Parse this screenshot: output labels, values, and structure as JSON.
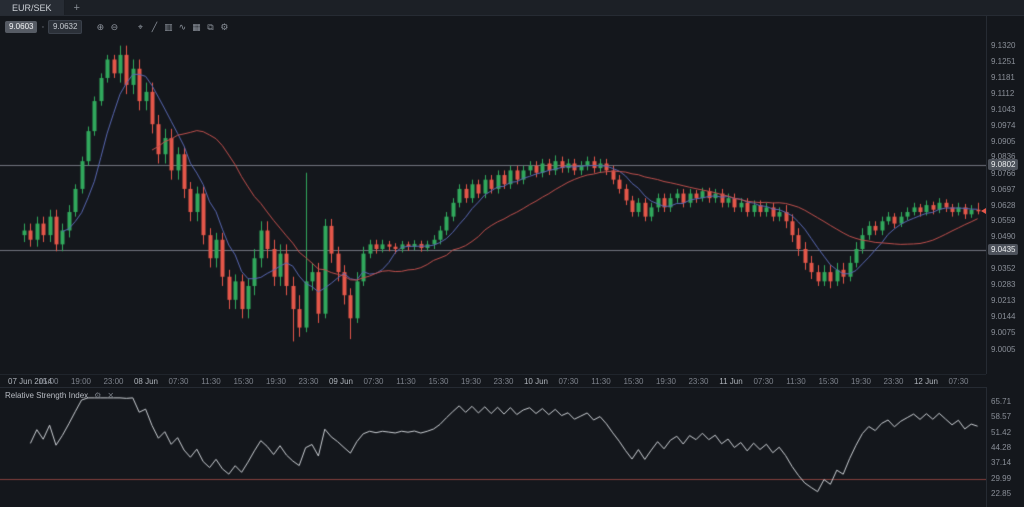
{
  "tab_bar": {
    "tabs": [
      {
        "label": "EUR/SEK",
        "active": true
      }
    ],
    "new_tab": "+"
  },
  "toolbar": {
    "sell_price": "9.0603",
    "buy_price": "9.0632",
    "divider_glyph": "▫",
    "icons": [
      {
        "name": "zoom-in-icon",
        "glyph": "⊕"
      },
      {
        "name": "zoom-out-icon",
        "glyph": "⊖"
      },
      {
        "name": "crosshair-icon",
        "glyph": "⌖"
      },
      {
        "name": "trendline-icon",
        "glyph": "╱"
      },
      {
        "name": "candlestick-type-icon",
        "glyph": "▥"
      },
      {
        "name": "indicators-icon",
        "glyph": "∿"
      },
      {
        "name": "grid-icon",
        "glyph": "▦"
      },
      {
        "name": "snapshot-icon",
        "glyph": "⧉"
      },
      {
        "name": "settings-icon",
        "glyph": "⚙"
      }
    ]
  },
  "price_axis": {
    "labels": [
      "9.1320",
      "9.1251",
      "9.1181",
      "9.1112",
      "9.1043",
      "9.0974",
      "9.0905",
      "9.0836",
      "9.0766",
      "9.0697",
      "9.0628",
      "9.0559",
      "9.0490",
      "9.0421",
      "9.0352",
      "9.0283",
      "9.0213",
      "9.0144",
      "9.0075",
      "9.0005"
    ],
    "level_labels": [
      "9.0802",
      "9.0435"
    ]
  },
  "rsi": {
    "title": "Relative Strength Index",
    "settings_glyph": "⚙",
    "close_glyph": "✕",
    "axis_labels": [
      "65.71",
      "58.57",
      "51.42",
      "44.28",
      "37.14",
      "29.99",
      "22.85"
    ],
    "level_value": 30
  },
  "colors": {
    "up": "#31a85c",
    "down": "#e4574a",
    "level_line": "#70757e",
    "rsi_line": "#ccd0d5",
    "rsi_level_line": "#84403c",
    "background": "#14171c",
    "axis_text": "#8a8f98"
  },
  "chart_data": {
    "type": "candlestick",
    "symbol": "EUR/SEK",
    "y_range": [
      8.999,
      9.134
    ],
    "last_price": 9.0603,
    "levels": [
      9.0802,
      9.0435
    ],
    "overlays": [
      {
        "name": "ma-fast",
        "type": "sma",
        "period": 7,
        "color": "#5968b3"
      },
      {
        "name": "ma-slow",
        "type": "sma",
        "period": 21,
        "color": "#c0504d"
      }
    ],
    "x_labels": [
      "07 Jun 2014",
      "15:00",
      "19:00",
      "23:00",
      "08 Jun",
      "07:30",
      "11:30",
      "15:30",
      "19:30",
      "23:30",
      "09 Jun",
      "07:30",
      "11:30",
      "15:30",
      "19:30",
      "23:30",
      "10 Jun",
      "07:30",
      "11:30",
      "15:30",
      "19:30",
      "23:30",
      "11 Jun",
      "07:30",
      "11:30",
      "15:30",
      "19:30",
      "23:30",
      "12 Jun",
      "07:30"
    ],
    "ohlc": [
      [
        9.05,
        9.055,
        9.047,
        9.052
      ],
      [
        9.052,
        9.055,
        9.045,
        9.048
      ],
      [
        9.048,
        9.058,
        9.045,
        9.055
      ],
      [
        9.055,
        9.058,
        9.047,
        9.05
      ],
      [
        9.05,
        9.061,
        9.047,
        9.058
      ],
      [
        9.058,
        9.061,
        9.043,
        9.046
      ],
      [
        9.046,
        9.055,
        9.043,
        9.052
      ],
      [
        9.052,
        9.063,
        9.049,
        9.06
      ],
      [
        9.06,
        9.072,
        9.058,
        9.07
      ],
      [
        9.07,
        9.084,
        9.068,
        9.082
      ],
      [
        9.082,
        9.097,
        9.08,
        9.095
      ],
      [
        9.095,
        9.11,
        9.093,
        9.108
      ],
      [
        9.108,
        9.12,
        9.106,
        9.118
      ],
      [
        9.118,
        9.128,
        9.116,
        9.126
      ],
      [
        9.126,
        9.128,
        9.118,
        9.12
      ],
      [
        9.12,
        9.132,
        9.116,
        9.128
      ],
      [
        9.128,
        9.132,
        9.111,
        9.115
      ],
      [
        9.115,
        9.126,
        9.111,
        9.122
      ],
      [
        9.122,
        9.126,
        9.104,
        9.108
      ],
      [
        9.108,
        9.116,
        9.104,
        9.112
      ],
      [
        9.112,
        9.116,
        9.094,
        9.098
      ],
      [
        9.098,
        9.102,
        9.081,
        9.085
      ],
      [
        9.085,
        9.096,
        9.081,
        9.092
      ],
      [
        9.092,
        9.096,
        9.074,
        9.078
      ],
      [
        9.078,
        9.088,
        9.074,
        9.085
      ],
      [
        9.085,
        9.088,
        9.066,
        9.07
      ],
      [
        9.07,
        9.073,
        9.056,
        9.06
      ],
      [
        9.06,
        9.071,
        9.056,
        9.068
      ],
      [
        9.068,
        9.071,
        9.046,
        9.05
      ],
      [
        9.05,
        9.053,
        9.036,
        9.04
      ],
      [
        9.04,
        9.051,
        9.036,
        9.048
      ],
      [
        9.048,
        9.051,
        9.028,
        9.032
      ],
      [
        9.032,
        9.035,
        9.018,
        9.022
      ],
      [
        9.022,
        9.033,
        9.018,
        9.03
      ],
      [
        9.03,
        9.033,
        9.014,
        9.018
      ],
      [
        9.018,
        9.031,
        9.014,
        9.028
      ],
      [
        9.028,
        9.044,
        9.024,
        9.04
      ],
      [
        9.04,
        9.056,
        9.036,
        9.052
      ],
      [
        9.052,
        9.056,
        9.04,
        9.044
      ],
      [
        9.044,
        9.048,
        9.028,
        9.032
      ],
      [
        9.032,
        9.046,
        9.028,
        9.042
      ],
      [
        9.042,
        9.046,
        9.024,
        9.028
      ],
      [
        9.028,
        9.032,
        9.004,
        9.018
      ],
      [
        9.018,
        9.024,
        9.006,
        9.01
      ],
      [
        9.01,
        9.077,
        9.008,
        9.03
      ],
      [
        9.03,
        9.038,
        9.026,
        9.034
      ],
      [
        9.034,
        9.038,
        9.012,
        9.016
      ],
      [
        9.016,
        9.057,
        9.014,
        9.054
      ],
      [
        9.054,
        9.057,
        9.038,
        9.042
      ],
      [
        9.042,
        9.045,
        9.03,
        9.034
      ],
      [
        9.034,
        9.037,
        9.02,
        9.024
      ],
      [
        9.024,
        9.027,
        9.005,
        9.014
      ],
      [
        9.014,
        9.034,
        9.012,
        9.03
      ],
      [
        9.03,
        9.045,
        9.028,
        9.042
      ],
      [
        9.042,
        9.048,
        9.04,
        9.046
      ],
      [
        9.046,
        9.048,
        9.042,
        9.044
      ],
      [
        9.044,
        9.048,
        9.0425,
        9.046
      ],
      [
        9.046,
        9.0475,
        9.043,
        9.045
      ],
      [
        9.045,
        9.0465,
        9.042,
        9.044
      ],
      [
        9.044,
        9.0475,
        9.0425,
        9.046
      ],
      [
        9.046,
        9.0472,
        9.0432,
        9.045
      ],
      [
        9.045,
        9.0478,
        9.0435,
        9.0462
      ],
      [
        9.0462,
        9.0476,
        9.0428,
        9.0444
      ],
      [
        9.0444,
        9.0476,
        9.043,
        9.046
      ],
      [
        9.046,
        9.05,
        9.044,
        9.048
      ],
      [
        9.048,
        9.054,
        9.046,
        9.052
      ],
      [
        9.052,
        9.06,
        9.05,
        9.058
      ],
      [
        9.058,
        9.066,
        9.056,
        9.064
      ],
      [
        9.064,
        9.072,
        9.062,
        9.07
      ],
      [
        9.07,
        9.072,
        9.064,
        9.066
      ],
      [
        9.066,
        9.074,
        9.064,
        9.072
      ],
      [
        9.072,
        9.074,
        9.066,
        9.068
      ],
      [
        9.068,
        9.076,
        9.066,
        9.074
      ],
      [
        9.074,
        9.076,
        9.068,
        9.07
      ],
      [
        9.07,
        9.078,
        9.068,
        9.076
      ],
      [
        9.076,
        9.078,
        9.07,
        9.072
      ],
      [
        9.072,
        9.08,
        9.07,
        9.078
      ],
      [
        9.078,
        9.08,
        9.072,
        9.074
      ],
      [
        9.074,
        9.08,
        9.072,
        9.078
      ],
      [
        9.078,
        9.082,
        9.076,
        9.08
      ],
      [
        9.08,
        9.082,
        9.075,
        9.077
      ],
      [
        9.077,
        9.083,
        9.075,
        9.081
      ],
      [
        9.081,
        9.083,
        9.076,
        9.078
      ],
      [
        9.078,
        9.0845,
        9.076,
        9.082
      ],
      [
        9.082,
        9.084,
        9.077,
        9.079
      ],
      [
        9.079,
        9.083,
        9.077,
        9.081
      ],
      [
        9.081,
        9.083,
        9.076,
        9.078
      ],
      [
        9.078,
        9.082,
        9.076,
        9.08
      ],
      [
        9.08,
        9.084,
        9.078,
        9.082
      ],
      [
        9.082,
        9.084,
        9.077,
        9.079
      ],
      [
        9.079,
        9.083,
        9.077,
        9.081
      ],
      [
        9.081,
        9.083,
        9.076,
        9.078
      ],
      [
        9.078,
        9.08,
        9.072,
        9.074
      ],
      [
        9.074,
        9.076,
        9.068,
        9.07
      ],
      [
        9.07,
        9.072,
        9.063,
        9.065
      ],
      [
        9.065,
        9.067,
        9.058,
        9.06
      ],
      [
        9.06,
        9.066,
        9.058,
        9.064
      ],
      [
        9.064,
        9.066,
        9.056,
        9.058
      ],
      [
        9.058,
        9.064,
        9.056,
        9.062
      ],
      [
        9.062,
        9.068,
        9.06,
        9.066
      ],
      [
        9.066,
        9.068,
        9.06,
        9.062
      ],
      [
        9.062,
        9.068,
        9.06,
        9.066
      ],
      [
        9.066,
        9.07,
        9.064,
        9.068
      ],
      [
        9.068,
        9.07,
        9.062,
        9.064
      ],
      [
        9.064,
        9.07,
        9.062,
        9.068
      ],
      [
        9.068,
        9.0695,
        9.064,
        9.066
      ],
      [
        9.066,
        9.0705,
        9.0645,
        9.069
      ],
      [
        9.069,
        9.0705,
        9.064,
        9.066
      ],
      [
        9.066,
        9.07,
        9.064,
        9.068
      ],
      [
        9.068,
        9.07,
        9.062,
        9.064
      ],
      [
        9.064,
        9.068,
        9.062,
        9.066
      ],
      [
        9.066,
        9.068,
        9.06,
        9.062
      ],
      [
        9.062,
        9.066,
        9.06,
        9.064
      ],
      [
        9.064,
        9.066,
        9.058,
        9.06
      ],
      [
        9.06,
        9.065,
        9.058,
        9.063
      ],
      [
        9.063,
        9.065,
        9.058,
        9.06
      ],
      [
        9.06,
        9.064,
        9.058,
        9.062
      ],
      [
        9.062,
        9.064,
        9.056,
        9.058
      ],
      [
        9.058,
        9.062,
        9.056,
        9.06
      ],
      [
        9.06,
        9.063,
        9.053,
        9.056
      ],
      [
        9.056,
        9.059,
        9.047,
        9.05
      ],
      [
        9.05,
        9.053,
        9.041,
        9.044
      ],
      [
        9.044,
        9.047,
        9.035,
        9.038
      ],
      [
        9.038,
        9.041,
        9.031,
        9.034
      ],
      [
        9.034,
        9.037,
        9.028,
        9.03
      ],
      [
        9.03,
        9.037,
        9.028,
        9.034
      ],
      [
        9.034,
        9.037,
        9.027,
        9.03
      ],
      [
        9.03,
        9.038,
        9.028,
        9.035
      ],
      [
        9.035,
        9.038,
        9.029,
        9.032
      ],
      [
        9.032,
        9.041,
        9.03,
        9.038
      ],
      [
        9.038,
        9.047,
        9.036,
        9.044
      ],
      [
        9.044,
        9.053,
        9.042,
        9.05
      ],
      [
        9.05,
        9.056,
        9.048,
        9.054
      ],
      [
        9.054,
        9.056,
        9.05,
        9.052
      ],
      [
        9.052,
        9.058,
        9.05,
        9.056
      ],
      [
        9.056,
        9.06,
        9.0545,
        9.058
      ],
      [
        9.058,
        9.0595,
        9.053,
        9.055
      ],
      [
        9.055,
        9.06,
        9.0535,
        9.058
      ],
      [
        9.058,
        9.062,
        9.0565,
        9.06
      ],
      [
        9.06,
        9.064,
        9.0585,
        9.062
      ],
      [
        9.062,
        9.0635,
        9.058,
        9.06
      ],
      [
        9.06,
        9.065,
        9.0585,
        9.063
      ],
      [
        9.063,
        9.0645,
        9.059,
        9.061
      ],
      [
        9.061,
        9.066,
        9.0595,
        9.064
      ],
      [
        9.064,
        9.0655,
        9.06,
        9.062
      ],
      [
        9.062,
        9.0635,
        9.058,
        9.06
      ],
      [
        9.06,
        9.064,
        9.0585,
        9.062
      ],
      [
        9.062,
        9.0635,
        9.057,
        9.059
      ],
      [
        9.059,
        9.063,
        9.0575,
        9.061
      ],
      [
        9.061,
        9.064,
        9.059,
        9.0603
      ]
    ],
    "sub_chart": {
      "type": "line",
      "name": "Relative Strength Index",
      "formula": "RSI(14) of close",
      "y_range": [
        19.3,
        69.3
      ],
      "levels": [
        30
      ]
    }
  }
}
